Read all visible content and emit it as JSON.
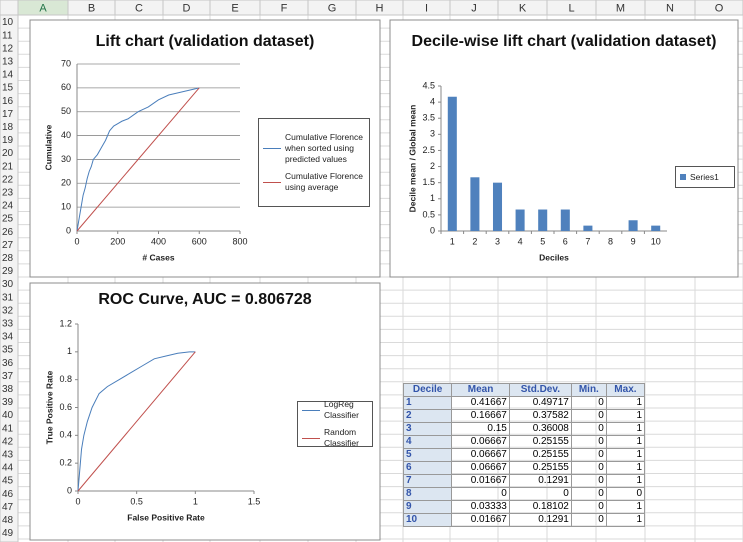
{
  "sheet": {
    "columns": [
      "A",
      "B",
      "C",
      "D",
      "E",
      "F",
      "G",
      "H",
      "I",
      "J",
      "K",
      "L",
      "M",
      "N",
      "O"
    ],
    "rows": [
      10,
      11,
      12,
      13,
      14,
      15,
      16,
      17,
      18,
      19,
      20,
      21,
      22,
      23,
      24,
      25,
      26,
      27,
      28,
      29,
      30,
      31,
      32,
      33,
      34,
      35,
      36,
      37,
      38,
      39,
      40,
      41,
      42,
      43,
      44,
      45,
      46,
      47,
      48,
      49
    ]
  },
  "chart_data": [
    {
      "type": "line",
      "title": "Lift chart (validation dataset)",
      "x_label": "# Cases",
      "y_label": "Cumulative",
      "xlim": [
        0,
        800
      ],
      "xticks": [
        0,
        200,
        400,
        600,
        800
      ],
      "ylim": [
        0,
        70
      ],
      "yticks": [
        0,
        10,
        20,
        30,
        40,
        50,
        60,
        70
      ],
      "grid": true,
      "legend": "right",
      "series": [
        {
          "name": "Cumulative Florence when sorted using predicted values",
          "color": "#4a7ebb",
          "x": [
            0,
            10,
            20,
            30,
            40,
            50,
            60,
            70,
            80,
            100,
            120,
            140,
            160,
            180,
            200,
            220,
            250,
            300,
            350,
            400,
            450,
            500,
            550,
            600
          ],
          "values": [
            0,
            5,
            10,
            15,
            18,
            22,
            25,
            27,
            30,
            32,
            35,
            38,
            42,
            44,
            45,
            46,
            47,
            50,
            52,
            55,
            57,
            58,
            59,
            60
          ]
        },
        {
          "name": "Cumulative Florence using average",
          "color": "#c0504d",
          "x": [
            0,
            600
          ],
          "values": [
            0,
            60
          ]
        }
      ]
    },
    {
      "type": "bar",
      "title": "Decile-wise lift chart (validation dataset)",
      "x_label": "Deciles",
      "y_label": "Decile mean / Global mean",
      "categories": [
        1,
        2,
        3,
        4,
        5,
        6,
        7,
        8,
        9,
        10
      ],
      "ylim": [
        0,
        4.5
      ],
      "yticks": [
        0,
        0.5,
        1,
        1.5,
        2,
        2.5,
        3,
        3.5,
        4,
        4.5
      ],
      "grid": false,
      "legend": "right",
      "series": [
        {
          "name": "Series1",
          "color": "#4f81bd",
          "values": [
            4.1667,
            1.6667,
            1.5,
            0.6667,
            0.6667,
            0.6667,
            0.1667,
            0,
            0.3333,
            0.1667
          ]
        }
      ]
    },
    {
      "type": "line",
      "title": "ROC Curve, AUC = 0.806728",
      "x_label": "False Positive Rate",
      "y_label": "True Positive Rate",
      "xlim": [
        0,
        1.5
      ],
      "xticks": [
        0,
        0.5,
        1,
        1.5
      ],
      "ylim": [
        0,
        1.2
      ],
      "yticks": [
        0,
        0.2,
        0.4,
        0.6,
        0.8,
        1,
        1.2
      ],
      "grid": false,
      "legend": "right",
      "series": [
        {
          "name": "LogReg Classifier",
          "color": "#4a7ebb",
          "x": [
            0,
            0.01,
            0.02,
            0.03,
            0.05,
            0.08,
            0.12,
            0.18,
            0.25,
            0.35,
            0.45,
            0.55,
            0.65,
            0.75,
            0.85,
            0.95,
            1
          ],
          "values": [
            0,
            0.1,
            0.2,
            0.3,
            0.4,
            0.5,
            0.6,
            0.7,
            0.75,
            0.8,
            0.85,
            0.9,
            0.95,
            0.97,
            0.99,
            1,
            1
          ]
        },
        {
          "name": "Random Classifier",
          "color": "#c0504d",
          "x": [
            0,
            1
          ],
          "values": [
            0,
            1
          ]
        }
      ]
    }
  ],
  "table": {
    "header": [
      "Decile",
      "Mean",
      "Std.Dev.",
      "Min.",
      "Max."
    ],
    "rows": [
      [
        1,
        0.41667,
        0.49717,
        0,
        1
      ],
      [
        2,
        0.16667,
        0.37582,
        0,
        1
      ],
      [
        3,
        0.15,
        0.36008,
        0,
        1
      ],
      [
        4,
        0.06667,
        0.25155,
        0,
        1
      ],
      [
        5,
        0.06667,
        0.25155,
        0,
        1
      ],
      [
        6,
        0.06667,
        0.25155,
        0,
        1
      ],
      [
        7,
        0.01667,
        0.1291,
        0,
        1
      ],
      [
        8,
        0,
        0,
        0,
        0
      ],
      [
        9,
        0.03333,
        0.18102,
        0,
        1
      ],
      [
        10,
        0.01667,
        0.1291,
        0,
        1
      ]
    ]
  }
}
